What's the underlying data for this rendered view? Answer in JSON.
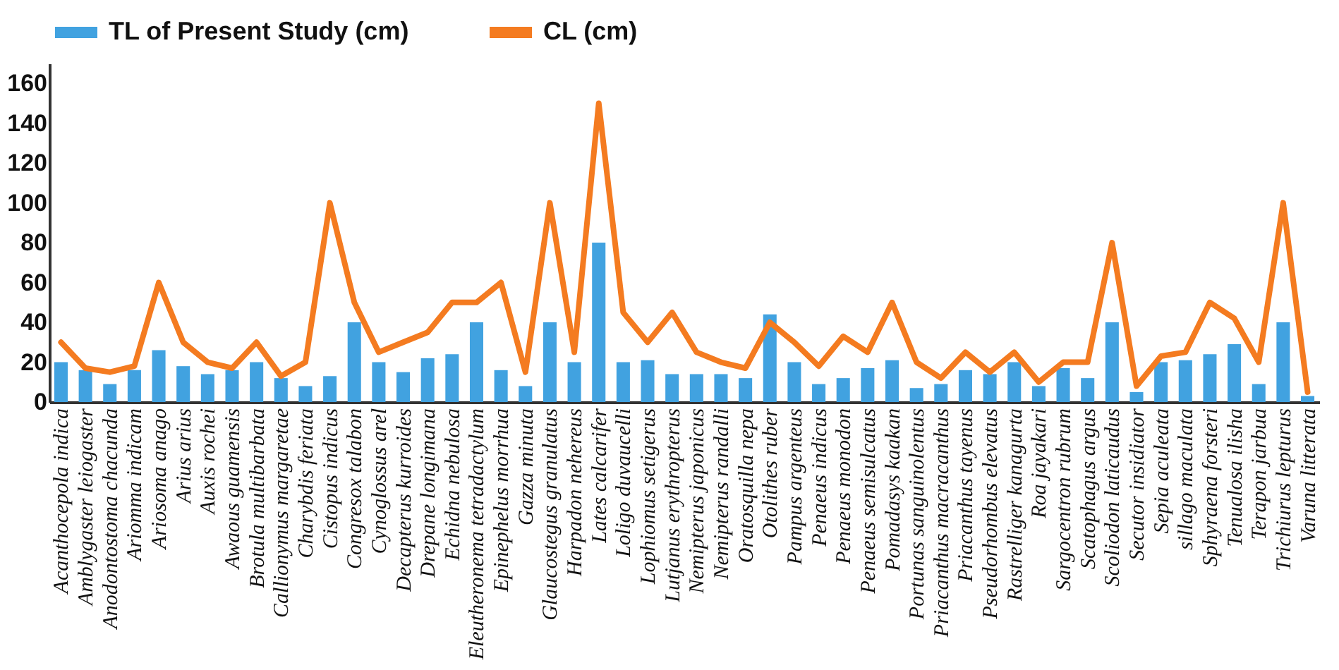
{
  "chart_data": {
    "type": "bar",
    "categories": [
      "Acanthocepola indica",
      "Amblygaster leiogaster",
      "Anodontostoma chacunda",
      "Ariomma indicam",
      "Ariosoma anago",
      "Arius arius",
      "Auxis rochei",
      "Awaous guamensis",
      "Brotula multibarbata",
      "Callionymus margaretae",
      "Charybdis feriata",
      "Cistopus indicus",
      "Congresox talabon",
      "Cynoglossus arel",
      "Decapterus kurroides",
      "Drepane longimana",
      "Echidna nebulosa",
      "Eleutheronema tetradactylum",
      "Epinephelus morrhua",
      "Gazza minuta",
      "Glaucostegus granulatus",
      "Harpadon nehereus",
      "Lates calcarifer",
      "Loligo duvaucelli",
      "Lophiomus setigerus",
      "Lutjanus erythropterus",
      "Nemipterus japonicus",
      "Nemipterus randalli",
      "Oratosquilla nepa",
      "Otolithes ruber",
      "Pampus argenteus",
      "Penaeus indicus",
      "Penaeus monodon",
      "Penaeus semisulcatus",
      "Pomadasys kaakan",
      "Portunas sanguinolentus",
      "Priacanthus macracanthus",
      "Priacanthus tayenus",
      "Pseudorhombus elevatus",
      "Rastrelliger kanagurta",
      "Roa jayakari",
      "Sargocentron rubrum",
      "Scatophagus argus",
      "Scoliodon laticaudus",
      "Secutor insidiator",
      "Sepia aculeata",
      "sillago maculata",
      "Sphyraena  forsteri",
      "Tenualosa ilisha",
      "Terapon jarbua",
      "Trichiurus lepturus",
      "Varuna litterata"
    ],
    "series": [
      {
        "name": "TL of Present Study (cm)",
        "color": "#41a2e0",
        "values": [
          20,
          16,
          9,
          16,
          26,
          18,
          14,
          16,
          20,
          12,
          8,
          13,
          40,
          20,
          15,
          22,
          24,
          40,
          16,
          8,
          40,
          20,
          80,
          20,
          21,
          14,
          14,
          14,
          12,
          44,
          20,
          9,
          12,
          17,
          21,
          7,
          9,
          16,
          14,
          20,
          8,
          17,
          12,
          40,
          5,
          20,
          21,
          24,
          29,
          9,
          40,
          3
        ]
      },
      {
        "name": "CL (cm)",
        "type": "line",
        "color": "#f47b20",
        "values": [
          30,
          17,
          15,
          18,
          60,
          30,
          20,
          17,
          30,
          13,
          20,
          100,
          50,
          25,
          30,
          35,
          50,
          50,
          60,
          15,
          100,
          25,
          150,
          45,
          30,
          45,
          25,
          20,
          17,
          40,
          30,
          18,
          33,
          25,
          50,
          20,
          12,
          25,
          15,
          25,
          10,
          20,
          20,
          80,
          8,
          23,
          25,
          50,
          42,
          20,
          100,
          5
        ]
      }
    ],
    "ylim": [
      0,
      170
    ],
    "yticks": [
      0,
      20,
      40,
      60,
      80,
      100,
      120,
      140,
      160
    ],
    "legend": "top",
    "line_style": "solid",
    "marker": "none"
  }
}
